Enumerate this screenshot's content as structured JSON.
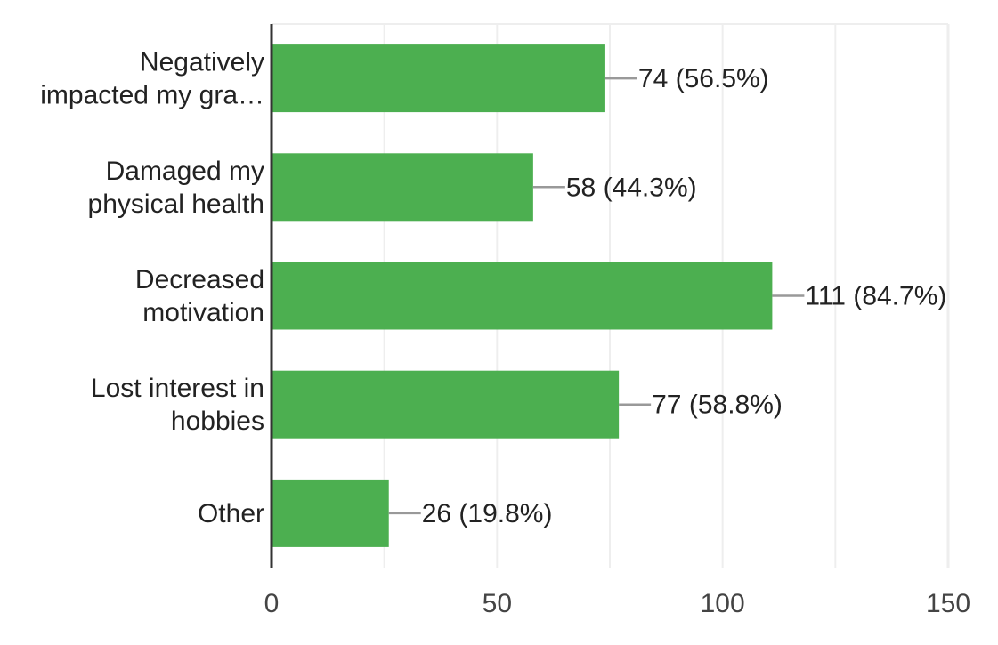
{
  "chart_data": {
    "type": "bar",
    "orientation": "horizontal",
    "categories": [
      [
        "Negatively",
        "impacted my gra…"
      ],
      [
        "Damaged my",
        "physical health"
      ],
      [
        "Decreased",
        "motivation"
      ],
      [
        "Lost interest in",
        "hobbies"
      ],
      [
        "Other"
      ]
    ],
    "values": [
      74,
      58,
      111,
      77,
      26
    ],
    "data_labels": [
      "74 (56.5%)",
      "58 (44.3%)",
      "111 (84.7%)",
      "77 (58.8%)",
      "26 (19.8%)"
    ],
    "xlim": [
      0,
      150
    ],
    "xticks": [
      0,
      50,
      100,
      150
    ],
    "xtick_labels": [
      "0",
      "50",
      "100",
      "150"
    ],
    "grid": true,
    "colors": {
      "bar": "#4caf50",
      "grid": "#eeeeee",
      "axis": "#333333",
      "leader": "#999999"
    }
  }
}
